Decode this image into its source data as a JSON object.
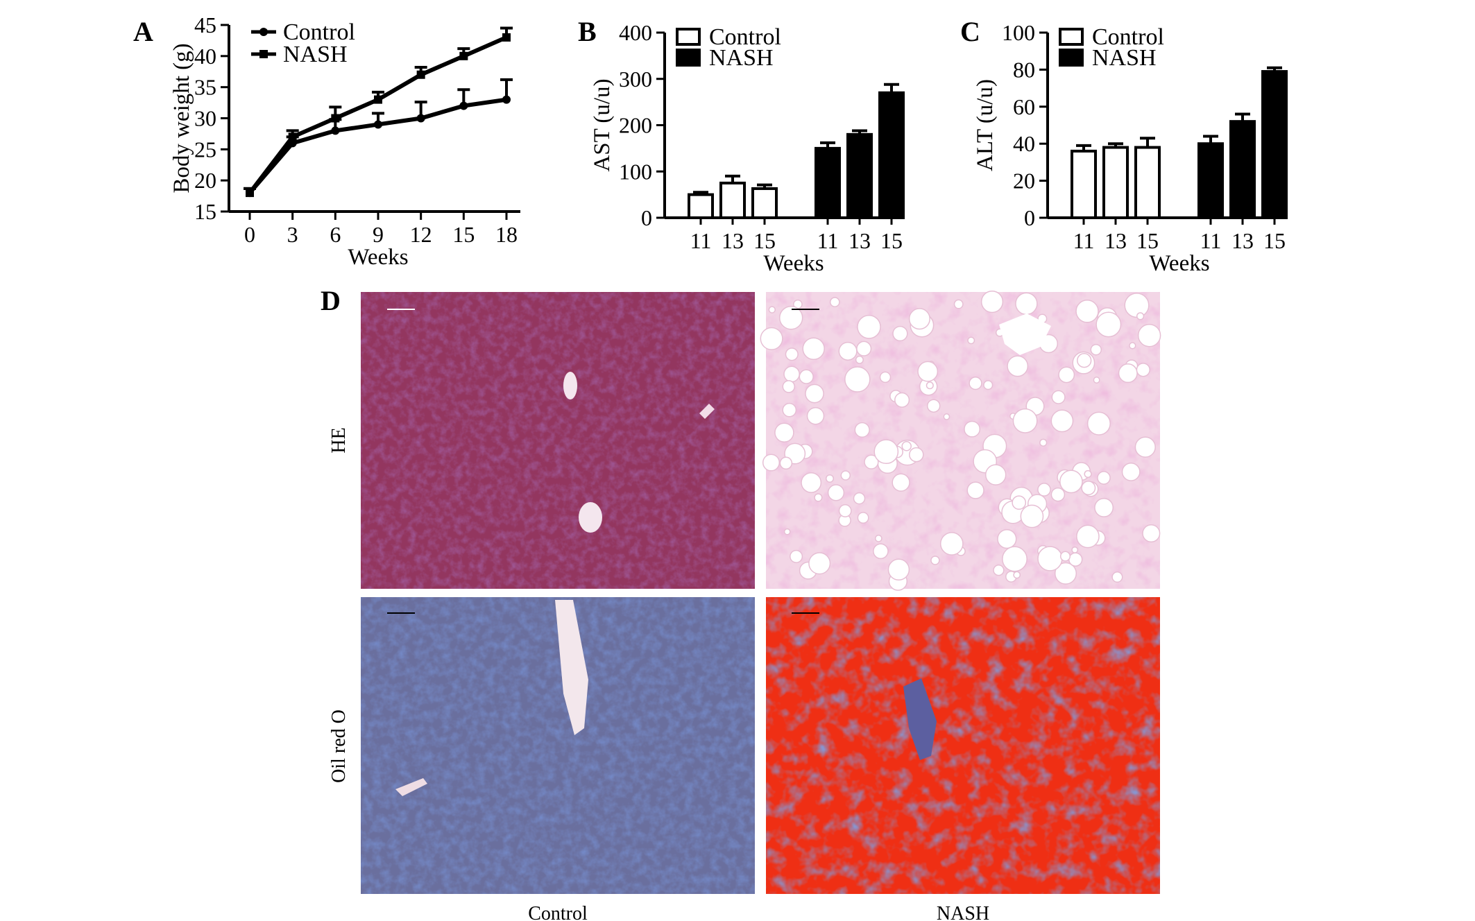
{
  "panels": {
    "a": "A",
    "b": "B",
    "c": "C",
    "d": "D"
  },
  "chart_data": [
    {
      "id": "A",
      "type": "line",
      "x": [
        0,
        3,
        6,
        9,
        12,
        15,
        18
      ],
      "xticks": [
        "0",
        "3",
        "6",
        "9",
        "12",
        "15",
        "18"
      ],
      "series": [
        {
          "name": "Control",
          "values": [
            18,
            26,
            28,
            29,
            30,
            32,
            33
          ],
          "errors": [
            0.7,
            1.0,
            1.8,
            1.8,
            2.6,
            2.6,
            3.2
          ]
        },
        {
          "name": "NASH",
          "values": [
            18,
            27,
            30,
            33,
            37,
            40,
            43
          ],
          "errors": [
            0.7,
            1.0,
            1.8,
            1.2,
            1.2,
            1.2,
            1.5
          ]
        }
      ],
      "xlabel": "Weeks",
      "ylabel": "Body weight (g)",
      "ylim": [
        15,
        45
      ],
      "yticks": [
        "15",
        "20",
        "25",
        "30",
        "35",
        "40",
        "45"
      ],
      "legend": [
        "Control",
        "NASH"
      ],
      "legend_position": "top-left",
      "grid": false
    },
    {
      "id": "B",
      "type": "bar",
      "categories": [
        "11",
        "13",
        "15"
      ],
      "series": [
        {
          "name": "Control",
          "values": [
            50,
            75,
            63
          ],
          "errors": [
            5,
            15,
            8
          ],
          "fill": "#ffffff"
        },
        {
          "name": "NASH",
          "values": [
            150,
            180,
            270
          ],
          "errors": [
            12,
            8,
            18
          ],
          "fill": "#000000"
        }
      ],
      "xlabel": "Weeks",
      "ylabel": "AST (u/u)",
      "ylim": [
        0,
        400
      ],
      "yticks": [
        "0",
        "100",
        "200",
        "300",
        "400"
      ],
      "legend": [
        "Control",
        "NASH"
      ],
      "legend_position": "top-left",
      "grid": false
    },
    {
      "id": "C",
      "type": "bar",
      "categories": [
        "11",
        "13",
        "15"
      ],
      "series": [
        {
          "name": "Control",
          "values": [
            36,
            38,
            38
          ],
          "errors": [
            3,
            2,
            5
          ],
          "fill": "#ffffff"
        },
        {
          "name": "NASH",
          "values": [
            40,
            52,
            79
          ],
          "errors": [
            4,
            4,
            2
          ],
          "fill": "#000000"
        }
      ],
      "xlabel": "Weeks",
      "ylabel": "ALT (u/u)",
      "ylim": [
        0,
        100
      ],
      "yticks": [
        "0",
        "20",
        "40",
        "60",
        "80",
        "100"
      ],
      "legend": [
        "Control",
        "NASH"
      ],
      "legend_position": "top-left",
      "grid": false
    }
  ],
  "micrographs": {
    "row_labels": [
      "HE",
      "Oil red O"
    ],
    "column_labels": [
      "Control",
      "NASH"
    ],
    "colors": {
      "he_control": "#93365f",
      "he_nash": "#f3d6e6",
      "oil_control": "#6a6f9e",
      "oil_nash": "#ef2f14"
    }
  }
}
